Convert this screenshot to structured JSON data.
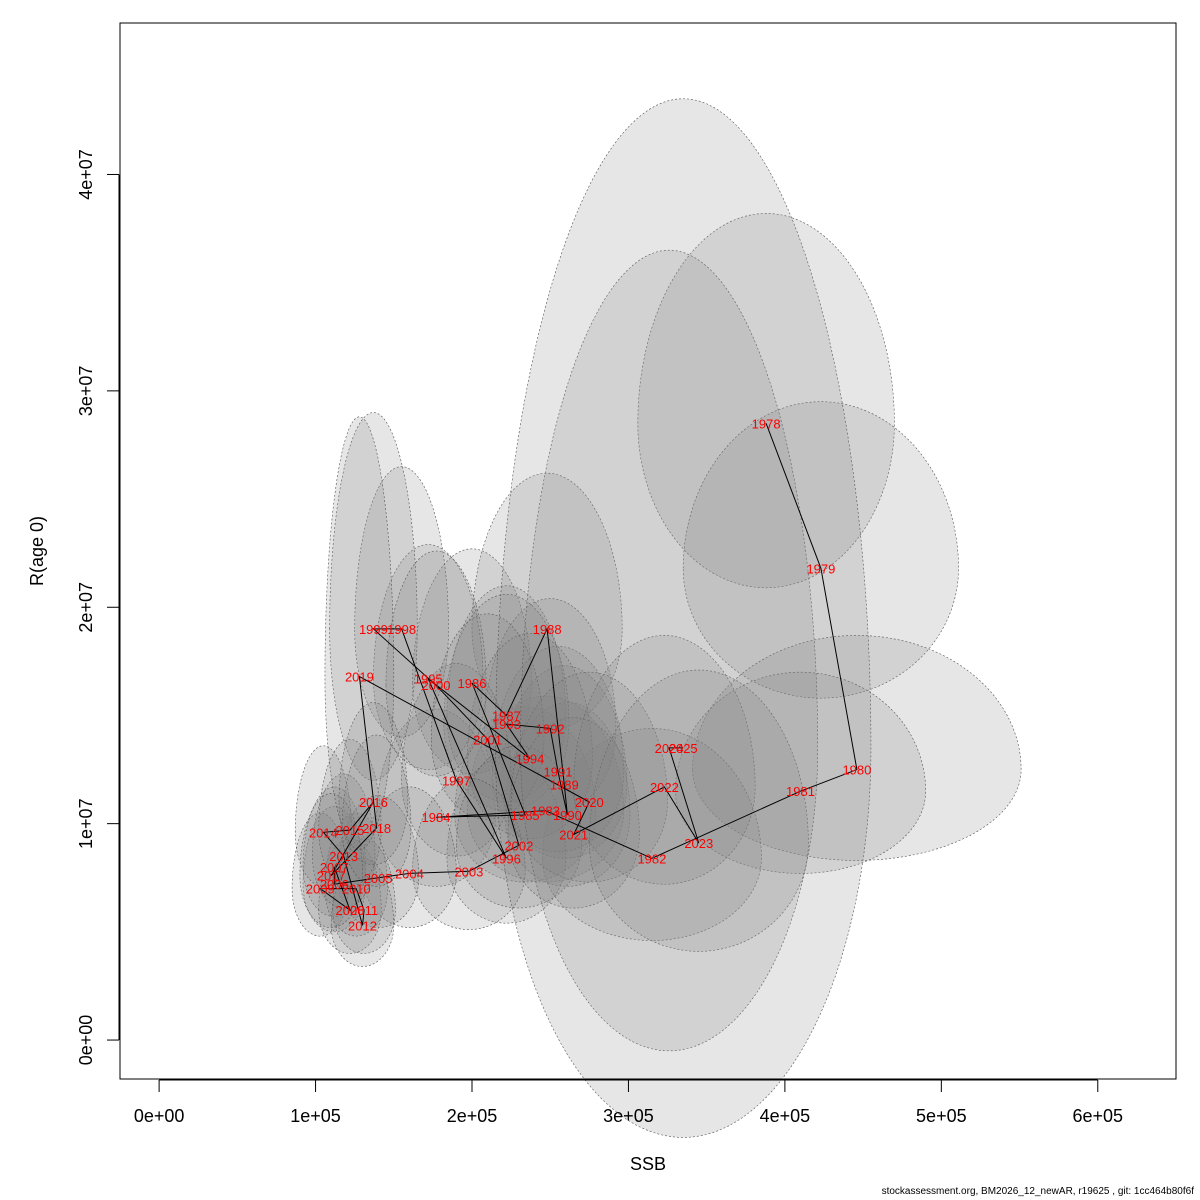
{
  "chart_data": {
    "type": "scatter",
    "title": "",
    "xlabel": "SSB",
    "ylabel": "R(age 0)",
    "xlim": [
      -25000,
      650000
    ],
    "ylim": [
      -1800000,
      47000000
    ],
    "xticks": [
      0,
      100000,
      200000,
      300000,
      400000,
      500000,
      600000
    ],
    "xtick_labels": [
      "0e+00",
      "1e+05",
      "2e+05",
      "3e+05",
      "4e+05",
      "5e+05",
      "6e+05"
    ],
    "yticks": [
      0,
      10000000,
      20000000,
      30000000,
      40000000
    ],
    "ytick_labels": [
      "0e+00",
      "1e+07",
      "2e+07",
      "3e+07",
      "4e+07"
    ],
    "grid": false,
    "legend": "none",
    "colors": {
      "label": "#ff0000",
      "path": "#000000",
      "ellipse_fill": "#808080",
      "ellipse_stroke": "#555555"
    },
    "points": [
      {
        "year": "1978",
        "x": 388000,
        "y": 28500000,
        "rw": 82000,
        "ru": 9700000,
        "rd": 7600000
      },
      {
        "year": "1979",
        "x": 423000,
        "y": 21800000,
        "rw": 88000,
        "ru": 7700000,
        "rd": 6000000
      },
      {
        "year": "1980",
        "x": 446000,
        "y": 12500000,
        "rw": 105000,
        "ru": 6200000,
        "rd": 4200000
      },
      {
        "year": "1981",
        "x": 410000,
        "y": 11500000,
        "rw": 80000,
        "ru": 5500000,
        "rd": 3800000
      },
      {
        "year": "1982",
        "x": 315000,
        "y": 8400000,
        "rw": 70000,
        "ru": 6000000,
        "rd": 3800000
      },
      {
        "year": "1983",
        "x": 247000,
        "y": 10600000,
        "rw": 50000,
        "ru": 5300000,
        "rd": 3300000
      },
      {
        "year": "1984",
        "x": 177000,
        "y": 10300000,
        "rw": 38000,
        "ru": 5000000,
        "rd": 3200000
      },
      {
        "year": "1985",
        "x": 234000,
        "y": 10400000,
        "rw": 45000,
        "ru": 5000000,
        "rd": 3100000
      },
      {
        "year": "1986",
        "x": 200000,
        "y": 16500000,
        "rw": 38000,
        "ru": 6200000,
        "rd": 4200000
      },
      {
        "year": "1987",
        "x": 222000,
        "y": 15000000,
        "rw": 38000,
        "ru": 6000000,
        "rd": 4000000
      },
      {
        "year": "1988",
        "x": 248000,
        "y": 19000000,
        "rw": 48000,
        "ru": 7200000,
        "rd": 4700000
      },
      {
        "year": "1989",
        "x": 259000,
        "y": 11800000,
        "rw": 40000,
        "ru": 5500000,
        "rd": 3400000
      },
      {
        "year": "1990",
        "x": 261000,
        "y": 10400000,
        "rw": 40000,
        "ru": 5200000,
        "rd": 3300000
      },
      {
        "year": "1991",
        "x": 255000,
        "y": 12400000,
        "rw": 42000,
        "ru": 5800000,
        "rd": 3700000
      },
      {
        "year": "1992",
        "x": 250000,
        "y": 14400000,
        "rw": 42000,
        "ru": 6000000,
        "rd": 4000000
      },
      {
        "year": "1993",
        "x": 222000,
        "y": 14600000,
        "rw": 40000,
        "ru": 6000000,
        "rd": 4000000
      },
      {
        "year": "1994",
        "x": 237000,
        "y": 13000000,
        "rw": 40000,
        "ru": 5800000,
        "rd": 3700000
      },
      {
        "year": "1995",
        "x": 172000,
        "y": 16700000,
        "rw": 35000,
        "ru": 6200000,
        "rd": 4200000
      },
      {
        "year": "1996",
        "x": 222000,
        "y": 8400000,
        "rw": 38000,
        "ru": 4700000,
        "rd": 3000000
      },
      {
        "year": "1997",
        "x": 190000,
        "y": 12000000,
        "rw": 35000,
        "ru": 5400000,
        "rd": 3500000
      },
      {
        "year": "1998",
        "x": 155000,
        "y": 19000000,
        "rw": 30000,
        "ru": 7500000,
        "rd": 5000000
      },
      {
        "year": "1999",
        "x": 137000,
        "y": 19000000,
        "rw": 28000,
        "ru": 10000000,
        "rd": 7000000
      },
      {
        "year": "2000",
        "x": 177000,
        "y": 16400000,
        "rw": 32000,
        "ru": 6200000,
        "rd": 4200000
      },
      {
        "year": "2001",
        "x": 210000,
        "y": 13900000,
        "rw": 36000,
        "ru": 5800000,
        "rd": 3700000
      },
      {
        "year": "2002",
        "x": 230000,
        "y": 9000000,
        "rw": 40000,
        "ru": 4600000,
        "rd": 2900000
      },
      {
        "year": "2003",
        "x": 198000,
        "y": 7800000,
        "rw": 36000,
        "ru": 4300000,
        "rd": 2700000
      },
      {
        "year": "2004",
        "x": 160000,
        "y": 7700000,
        "rw": 30000,
        "ru": 4000000,
        "rd": 2500000
      },
      {
        "year": "2005",
        "x": 140000,
        "y": 7500000,
        "rw": 26000,
        "ru": 3800000,
        "rd": 2300000
      },
      {
        "year": "2006",
        "x": 112000,
        "y": 7200000,
        "rw": 20000,
        "ru": 3600000,
        "rd": 2200000
      },
      {
        "year": "2007",
        "x": 112000,
        "y": 8000000,
        "rw": 20000,
        "ru": 3700000,
        "rd": 2300000
      },
      {
        "year": "2008",
        "x": 122000,
        "y": 6000000,
        "rw": 20000,
        "ru": 3300000,
        "rd": 2000000
      },
      {
        "year": "2009",
        "x": 103000,
        "y": 7000000,
        "rw": 18000,
        "ru": 3500000,
        "rd": 2200000
      },
      {
        "year": "2010",
        "x": 126000,
        "y": 7000000,
        "rw": 20000,
        "ru": 3500000,
        "rd": 2200000
      },
      {
        "year": "2011",
        "x": 131000,
        "y": 6000000,
        "rw": 20000,
        "ru": 3300000,
        "rd": 2000000
      },
      {
        "year": "2012",
        "x": 130000,
        "y": 5300000,
        "rw": 20000,
        "ru": 3100000,
        "rd": 1900000
      },
      {
        "year": "2013",
        "x": 118000,
        "y": 8500000,
        "rw": 20000,
        "ru": 3800000,
        "rd": 2400000
      },
      {
        "year": "2014",
        "x": 105000,
        "y": 9600000,
        "rw": 18000,
        "ru": 4000000,
        "rd": 2500000
      },
      {
        "year": "2015",
        "x": 122000,
        "y": 9700000,
        "rw": 20000,
        "ru": 4200000,
        "rd": 2600000
      },
      {
        "year": "2016",
        "x": 137000,
        "y": 11000000,
        "rw": 22000,
        "ru": 4600000,
        "rd": 2900000
      },
      {
        "year": "2017",
        "x": 110000,
        "y": 7600000,
        "rw": 20000,
        "ru": 3800000,
        "rd": 2400000
      },
      {
        "year": "2018",
        "x": 139000,
        "y": 9800000,
        "rw": 22000,
        "ru": 4300000,
        "rd": 2700000
      },
      {
        "year": "2019",
        "x": 128000,
        "y": 16800000,
        "rw": 22000,
        "ru": 12000000,
        "rd": 8000000
      },
      {
        "year": "2020",
        "x": 275000,
        "y": 11000000,
        "rw": 50000,
        "ru": 6000000,
        "rd": 3700000
      },
      {
        "year": "2021",
        "x": 265000,
        "y": 9500000,
        "rw": 42000,
        "ru": 5400000,
        "rd": 3400000
      },
      {
        "year": "2022",
        "x": 323000,
        "y": 11700000,
        "rw": 58000,
        "ru": 7000000,
        "rd": 4500000
      },
      {
        "year": "2023",
        "x": 345000,
        "y": 9100000,
        "rw": 70000,
        "ru": 8000000,
        "rd": 5000000
      },
      {
        "year": "2024",
        "x": 326000,
        "y": 13500000,
        "rw": 95000,
        "ru": 23000000,
        "rd": 14000000
      },
      {
        "year": "2025",
        "x": 335000,
        "y": 13500000,
        "rw": 120000,
        "ru": 30000000,
        "rd": 18000000
      }
    ]
  },
  "footer": "stockassessment.org, BM2026_12_newAR, r19625 , git: 1cc464b80f6f"
}
